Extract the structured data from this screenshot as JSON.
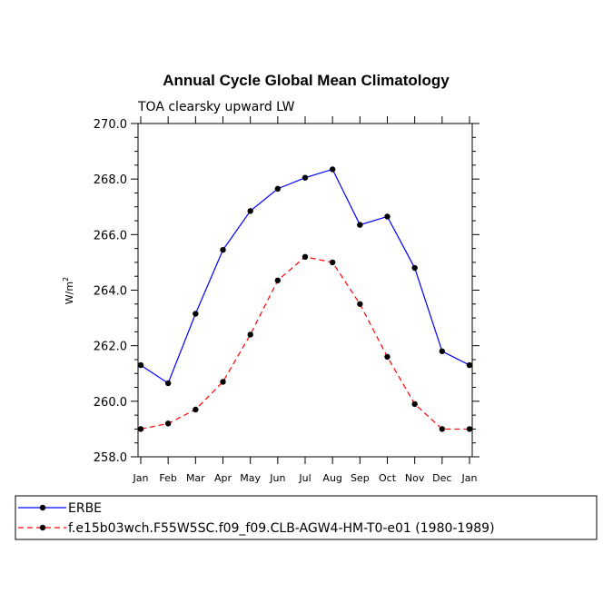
{
  "chart_data": {
    "type": "line",
    "title": "Annual Cycle Global Mean Climatology",
    "subtitle": "TOA clearsky upward LW",
    "ylabel": "W/m",
    "ylabel_superscript": "2",
    "ylim": [
      258.0,
      270.0
    ],
    "yticks": [
      "258.0",
      "260.0",
      "262.0",
      "264.0",
      "266.0",
      "268.0",
      "270.0"
    ],
    "categories": [
      "Jan",
      "Feb",
      "Mar",
      "Apr",
      "May",
      "Jun",
      "Jul",
      "Aug",
      "Sep",
      "Oct",
      "Nov",
      "Dec",
      "Jan"
    ],
    "grid": false,
    "legend_position": "bottom",
    "series": [
      {
        "name": "ERBE",
        "color": "#0000ff",
        "dash": "solid",
        "marker": "filled-circle",
        "values": [
          261.3,
          260.65,
          263.15,
          265.45,
          266.85,
          267.65,
          268.05,
          268.35,
          266.35,
          266.65,
          264.8,
          261.8,
          261.3
        ]
      },
      {
        "name": "f.e15b03wch.F55W5SC.f09_f09.CLB-AGW4-HM-T0-e01 (1980-1989)",
        "color": "#ff0000",
        "dash": "dashed",
        "marker": "filled-circle",
        "values": [
          259.0,
          259.2,
          259.7,
          260.7,
          262.4,
          264.35,
          265.2,
          265.0,
          263.5,
          261.6,
          259.9,
          259.0,
          259.0
        ]
      }
    ]
  }
}
